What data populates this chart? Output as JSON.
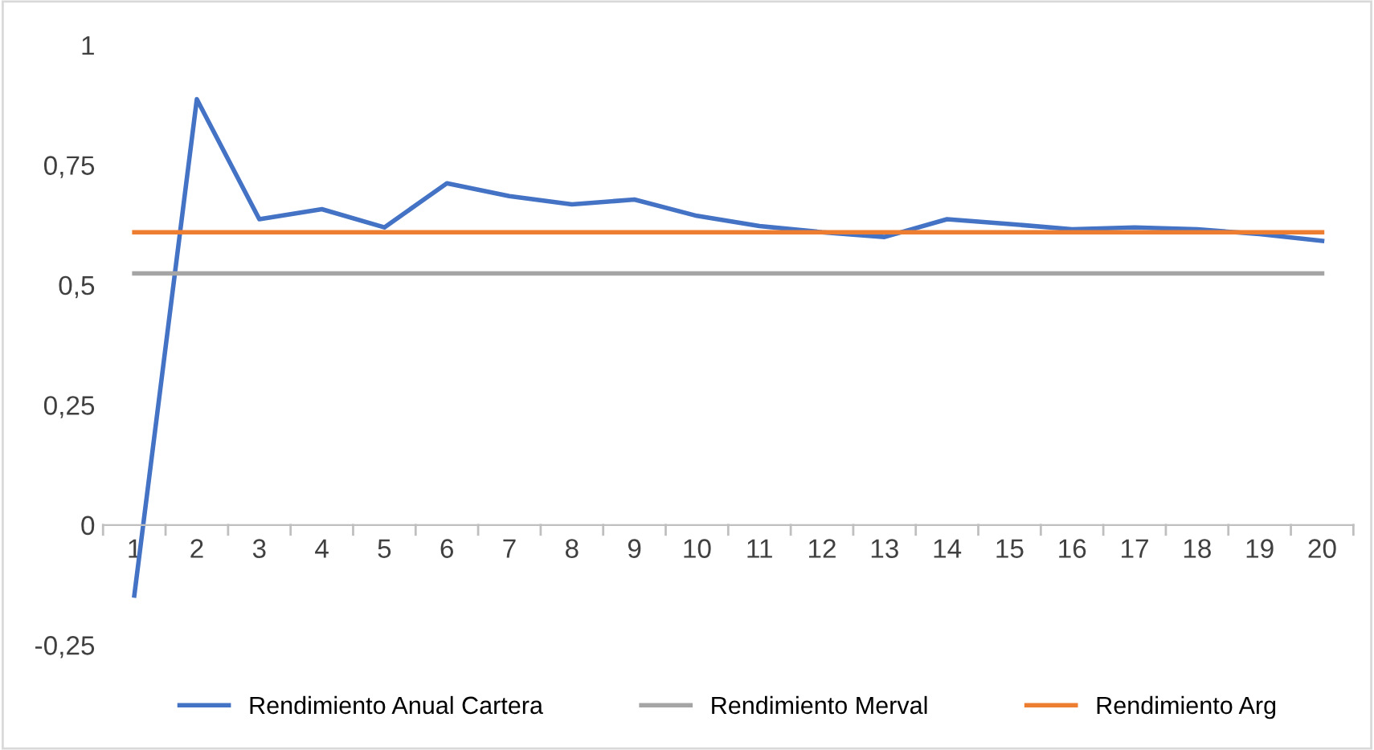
{
  "chart_data": {
    "type": "line",
    "categories": [
      "1",
      "2",
      "3",
      "4",
      "5",
      "6",
      "7",
      "8",
      "9",
      "10",
      "11",
      "12",
      "13",
      "14",
      "15",
      "16",
      "17",
      "18",
      "19",
      "20"
    ],
    "series": [
      {
        "name": "Rendimiento Anual Cartera",
        "color": "#4472c4",
        "values": [
          -0.147,
          0.887,
          0.637,
          0.658,
          0.62,
          0.712,
          0.685,
          0.668,
          0.678,
          0.644,
          0.623,
          0.61,
          0.6,
          0.637,
          0.627,
          0.616,
          0.62,
          0.616,
          0.606,
          0.592
        ]
      },
      {
        "name": "Rendimiento Merval",
        "color": "#a5a5a5",
        "values": [
          0.524,
          0.524,
          0.524,
          0.524,
          0.524,
          0.524,
          0.524,
          0.524,
          0.524,
          0.524,
          0.524,
          0.524,
          0.524,
          0.524,
          0.524,
          0.524,
          0.524,
          0.524,
          0.524,
          0.524
        ]
      },
      {
        "name": "Rendimiento Arg",
        "color": "#ed7d31",
        "values": [
          0.61,
          0.61,
          0.61,
          0.61,
          0.61,
          0.61,
          0.61,
          0.61,
          0.61,
          0.61,
          0.61,
          0.61,
          0.61,
          0.61,
          0.61,
          0.61,
          0.61,
          0.61,
          0.61,
          0.61
        ]
      }
    ],
    "ylim": [
      -0.25,
      1
    ],
    "yticks": [
      {
        "value": -0.25,
        "label": "-0,25"
      },
      {
        "value": 0,
        "label": "0"
      },
      {
        "value": 0.25,
        "label": "0,25"
      },
      {
        "value": 0.5,
        "label": "0,5"
      },
      {
        "value": 0.75,
        "label": "0,75"
      },
      {
        "value": 1,
        "label": "1"
      }
    ],
    "grid": false,
    "legend": "bottom",
    "marker": "none",
    "line_style": "solid"
  }
}
